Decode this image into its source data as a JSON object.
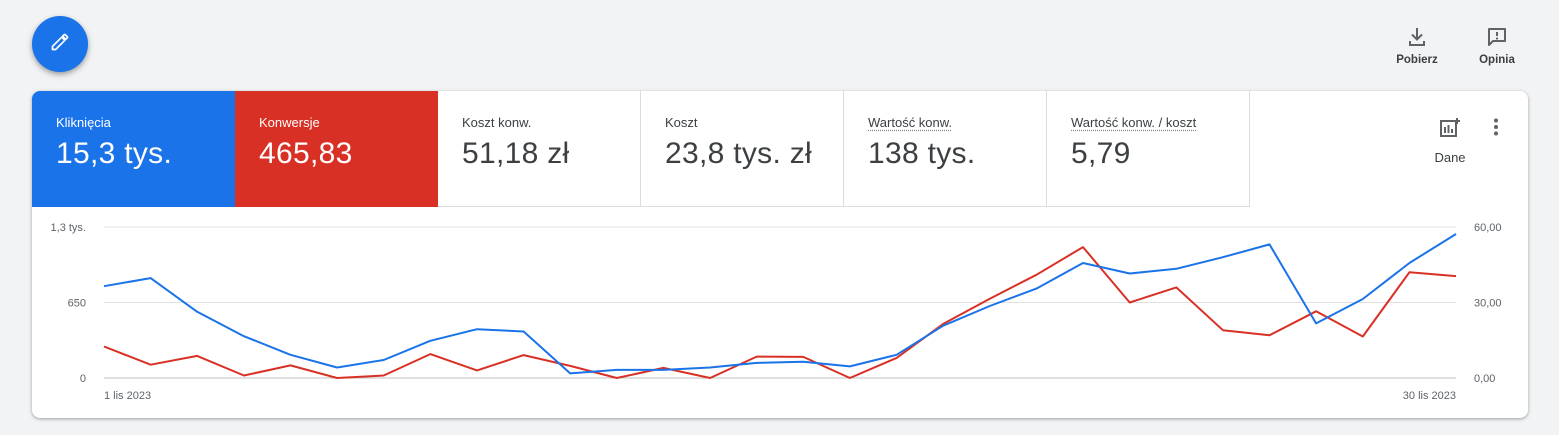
{
  "toolbar": {
    "download_label": "Pobierz",
    "feedback_label": "Opinia"
  },
  "metrics": [
    {
      "label": "Kliknięcia",
      "value": "15,3 tys."
    },
    {
      "label": "Konwersje",
      "value": "465,83"
    },
    {
      "label": "Koszt konw.",
      "value": "51,18 zł"
    },
    {
      "label": "Koszt",
      "value": "23,8 tys. zł"
    },
    {
      "label": "Wartość konw.",
      "value": "138 tys."
    },
    {
      "label": "Wartość konw. / koszt",
      "value": "5,79"
    }
  ],
  "dane_label": "Dane",
  "colors": {
    "clicks": "#1a73e8",
    "conversions": "#d93025"
  },
  "chart_data": {
    "type": "line",
    "x": [
      "1 lis 2023",
      "2 lis 2023",
      "3 lis 2023",
      "4 lis 2023",
      "5 lis 2023",
      "6 lis 2023",
      "7 lis 2023",
      "8 lis 2023",
      "9 lis 2023",
      "10 lis 2023",
      "11 lis 2023",
      "12 lis 2023",
      "13 lis 2023",
      "14 lis 2023",
      "15 lis 2023",
      "16 lis 2023",
      "17 lis 2023",
      "18 lis 2023",
      "19 lis 2023",
      "20 lis 2023",
      "21 lis 2023",
      "22 lis 2023",
      "23 lis 2023",
      "24 lis 2023",
      "25 lis 2023",
      "26 lis 2023",
      "27 lis 2023",
      "28 lis 2023",
      "29 lis 2023",
      "30 lis 2023"
    ],
    "x_tick_labels": [
      "1 lis 2023",
      "30 lis 2023"
    ],
    "left_axis": {
      "ticks": [
        "0",
        "650",
        "1,3 tys."
      ],
      "range": [
        0,
        1300
      ]
    },
    "right_axis": {
      "ticks": [
        "0,00",
        "30,00",
        "60,00"
      ],
      "range": [
        0,
        60
      ]
    },
    "grid": true,
    "series": [
      {
        "name": "Kliknięcia",
        "axis": "left",
        "values": [
          790,
          860,
          570,
          360,
          200,
          90,
          155,
          320,
          420,
          400,
          40,
          70,
          70,
          90,
          130,
          140,
          100,
          200,
          450,
          620,
          770,
          990,
          900,
          940,
          1040,
          1150,
          470,
          680,
          990,
          1240
        ]
      },
      {
        "name": "Konwersje",
        "axis": "right",
        "values": [
          12.5,
          5.3,
          8.8,
          1.0,
          5.0,
          0.0,
          1.0,
          9.5,
          3.0,
          9.1,
          4.8,
          0.0,
          4.0,
          0.0,
          8.5,
          8.4,
          0.0,
          8.0,
          21.5,
          31.5,
          41.0,
          52.0,
          30.0,
          36.0,
          19.0,
          17.0,
          26.5,
          16.5,
          42.0,
          40.5
        ]
      }
    ]
  }
}
